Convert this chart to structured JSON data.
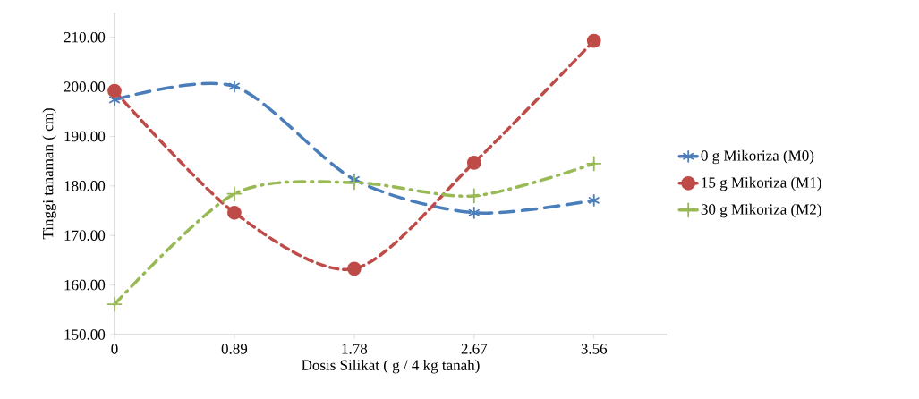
{
  "chart_data": {
    "type": "line",
    "xlabel": "Dosis Silikat ( g / 4 kg tanah)",
    "ylabel": "Tinggi tanaman ( cm)",
    "x": [
      0,
      0.89,
      1.78,
      2.67,
      3.56
    ],
    "xlim": [
      0,
      4.1
    ],
    "xticks": [
      0,
      0.89,
      1.78,
      2.67,
      3.56
    ],
    "ylim": [
      150,
      215
    ],
    "yticks": [
      {
        "value": 150,
        "label": "150.00"
      },
      {
        "value": 160,
        "label": "160.00"
      },
      {
        "value": 170,
        "label": "170.00"
      },
      {
        "value": 180,
        "label": "180.00"
      },
      {
        "value": 190,
        "label": "190.00"
      },
      {
        "value": 200,
        "label": "200.00"
      },
      {
        "value": 210,
        "label": "210.00"
      }
    ],
    "legend": "right",
    "series": [
      {
        "name": "0 g Mikoriza (M0)",
        "color": "#4a7ebb",
        "marker": "cross",
        "line_style": "dashed",
        "values": [
          197.4,
          200.1,
          181.3,
          174.6,
          177.1
        ]
      },
      {
        "name": "15 g Mikoriza (M1)",
        "color": "#be4b48",
        "marker": "circle",
        "line_style": "dashed",
        "values": [
          199.2,
          174.6,
          163.3,
          184.7,
          209.3
        ]
      },
      {
        "name": "30 g Mikoriza (M2)",
        "color": "#98b954",
        "marker": "cross",
        "line_style": "dashdot",
        "values": [
          156.1,
          178.4,
          180.7,
          178.0,
          184.5
        ]
      }
    ]
  }
}
